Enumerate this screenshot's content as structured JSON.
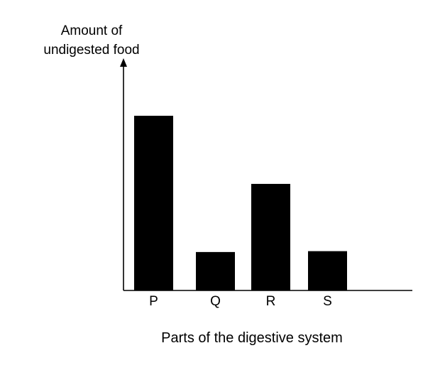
{
  "chart_data": {
    "type": "bar",
    "ylabel_lines": [
      "Amount of",
      "undigested food"
    ],
    "xlabel": "Parts of the digestive system",
    "categories": [
      "P",
      "Q",
      "R",
      "S"
    ],
    "values": [
      100,
      22,
      61,
      22.5
    ],
    "ylim": [
      0,
      100
    ],
    "y_ticks": "none",
    "grid": false,
    "legend": "none",
    "colors": {
      "bar": "#000000",
      "axis": "#000000",
      "background": "#ffffff"
    }
  }
}
